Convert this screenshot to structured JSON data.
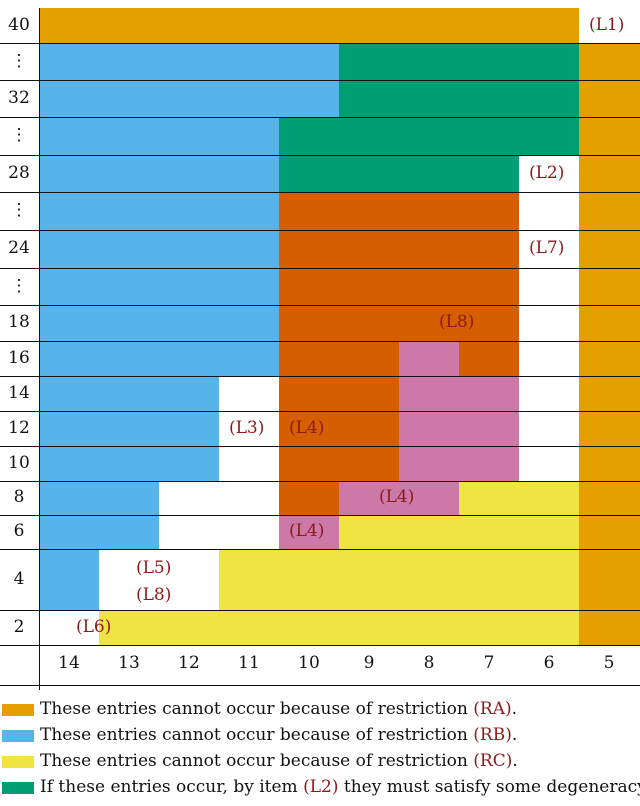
{
  "colors": {
    "RA": "#e69f00",
    "RB": "#56b4e9",
    "RC": "#f0e442",
    "GREEN": "#009e73",
    "VERM": "#d55e00",
    "PINK": "#cc79a7",
    "ref": "#8b1a1a"
  },
  "y_labels": [
    "40",
    "⋮",
    "32",
    "⋮",
    "28",
    "⋮",
    "24",
    "⋮",
    "18",
    "16",
    "14",
    "12",
    "10",
    "8",
    "6",
    "4",
    "2"
  ],
  "x_labels": [
    "14",
    "13",
    "12",
    "11",
    "10",
    "9",
    "8",
    "7",
    "6",
    "5"
  ],
  "regions": [
    {
      "row": 0,
      "from": 0,
      "to": 9,
      "color": "RA"
    },
    {
      "row": 1,
      "from": 0,
      "to": 5,
      "color": "RB"
    },
    {
      "row": 1,
      "from": 5,
      "to": 9,
      "color": "GREEN"
    },
    {
      "row": 2,
      "from": 0,
      "to": 5,
      "color": "RB"
    },
    {
      "row": 2,
      "from": 5,
      "to": 9,
      "color": "GREEN"
    },
    {
      "row": 3,
      "from": 0,
      "to": 4,
      "color": "RB"
    },
    {
      "row": 3,
      "from": 4,
      "to": 9,
      "color": "GREEN"
    },
    {
      "row": 4,
      "from": 0,
      "to": 4,
      "color": "RB"
    },
    {
      "row": 4,
      "from": 4,
      "to": 8,
      "color": "GREEN"
    },
    {
      "row": 5,
      "from": 0,
      "to": 4,
      "color": "RB"
    },
    {
      "row": 5,
      "from": 4,
      "to": 8,
      "color": "VERM"
    },
    {
      "row": 6,
      "from": 0,
      "to": 4,
      "color": "RB"
    },
    {
      "row": 6,
      "from": 4,
      "to": 8,
      "color": "VERM"
    },
    {
      "row": 7,
      "from": 0,
      "to": 4,
      "color": "RB"
    },
    {
      "row": 7,
      "from": 4,
      "to": 8,
      "color": "VERM"
    },
    {
      "row": 8,
      "from": 0,
      "to": 4,
      "color": "RB"
    },
    {
      "row": 8,
      "from": 4,
      "to": 8,
      "color": "VERM"
    },
    {
      "row": 9,
      "from": 0,
      "to": 4,
      "color": "RB"
    },
    {
      "row": 9,
      "from": 4,
      "to": 6,
      "color": "VERM"
    },
    {
      "row": 9,
      "from": 6,
      "to": 7,
      "color": "PINK"
    },
    {
      "row": 9,
      "from": 7,
      "to": 8,
      "color": "VERM"
    },
    {
      "row": 10,
      "from": 0,
      "to": 3,
      "color": "RB"
    },
    {
      "row": 10,
      "from": 4,
      "to": 6,
      "color": "VERM"
    },
    {
      "row": 10,
      "from": 6,
      "to": 8,
      "color": "PINK"
    },
    {
      "row": 11,
      "from": 0,
      "to": 3,
      "color": "RB"
    },
    {
      "row": 11,
      "from": 4,
      "to": 6,
      "color": "VERM"
    },
    {
      "row": 11,
      "from": 6,
      "to": 8,
      "color": "PINK"
    },
    {
      "row": 12,
      "from": 0,
      "to": 3,
      "color": "RB"
    },
    {
      "row": 12,
      "from": 4,
      "to": 6,
      "color": "VERM"
    },
    {
      "row": 12,
      "from": 6,
      "to": 8,
      "color": "PINK"
    },
    {
      "row": 13,
      "from": 0,
      "to": 2,
      "color": "RB"
    },
    {
      "row": 13,
      "from": 4,
      "to": 5,
      "color": "VERM"
    },
    {
      "row": 13,
      "from": 5,
      "to": 7,
      "color": "PINK"
    },
    {
      "row": 13,
      "from": 7,
      "to": 9,
      "color": "RC"
    },
    {
      "row": 14,
      "from": 0,
      "to": 2,
      "color": "RB"
    },
    {
      "row": 14,
      "from": 4,
      "to": 5,
      "color": "PINK"
    },
    {
      "row": 14,
      "from": 5,
      "to": 9,
      "color": "RC"
    },
    {
      "row": 15,
      "from": 0,
      "to": 1,
      "color": "RB"
    },
    {
      "row": 15,
      "from": 3,
      "to": 9,
      "color": "RC"
    },
    {
      "row": 16,
      "from": 1,
      "to": 9,
      "color": "RC"
    },
    {
      "row": 1,
      "from": 9,
      "to": 10,
      "color": "RA"
    },
    {
      "row": 2,
      "from": 9,
      "to": 10,
      "color": "RA"
    },
    {
      "row": 3,
      "from": 9,
      "to": 10,
      "color": "RA"
    },
    {
      "row": 4,
      "from": 9,
      "to": 10,
      "color": "RA"
    },
    {
      "row": 5,
      "from": 9,
      "to": 10,
      "color": "RA"
    },
    {
      "row": 6,
      "from": 9,
      "to": 10,
      "color": "RA"
    },
    {
      "row": 7,
      "from": 9,
      "to": 10,
      "color": "RA"
    },
    {
      "row": 8,
      "from": 9,
      "to": 10,
      "color": "RA"
    },
    {
      "row": 9,
      "from": 9,
      "to": 10,
      "color": "RA"
    },
    {
      "row": 10,
      "from": 9,
      "to": 10,
      "color": "RA"
    },
    {
      "row": 11,
      "from": 9,
      "to": 10,
      "color": "RA"
    },
    {
      "row": 12,
      "from": 9,
      "to": 10,
      "color": "RA"
    },
    {
      "row": 13,
      "from": 9,
      "to": 10,
      "color": "RA"
    },
    {
      "row": 14,
      "from": 9,
      "to": 10,
      "color": "RA"
    },
    {
      "row": 15,
      "from": 9,
      "to": 10,
      "color": "RA"
    },
    {
      "row": 16,
      "from": 9,
      "to": 10,
      "color": "RA"
    }
  ],
  "annotations": [
    {
      "text": "(L1)",
      "row": 0,
      "col": 9
    },
    {
      "text": "(L2)",
      "row": 4,
      "col": 8
    },
    {
      "text": "(L7)",
      "row": 6,
      "col": 8
    },
    {
      "text": "(L8)",
      "row": 8,
      "col": 6.5
    },
    {
      "text": "(L3)",
      "row": 11,
      "col": 3
    },
    {
      "text": "(L4)",
      "row": 11,
      "col": 4
    },
    {
      "text": "(L4)",
      "row": 13,
      "col": 5.5
    },
    {
      "text": "(L4)",
      "row": 14,
      "col": 4
    },
    {
      "text": "(L5)",
      "row": 15,
      "col": 1.45,
      "sub": "top"
    },
    {
      "text": "(L8)",
      "row": 15,
      "col": 1.45,
      "sub": "bottom"
    },
    {
      "text": "(L6)",
      "row": 16,
      "col": 0.45
    }
  ],
  "legend": [
    {
      "color": "RA",
      "text": "These entries cannot occur because of restriction ",
      "ref": "(RA)",
      "tail": "."
    },
    {
      "color": "RB",
      "text": "These entries cannot occur because of restriction ",
      "ref": "(RB)",
      "tail": "."
    },
    {
      "color": "RC",
      "text": "These entries cannot occur because of restriction ",
      "ref": "(RC)",
      "tail": "."
    },
    {
      "color": "GREEN",
      "text": "If these entries occur, by item ",
      "ref": "(L2)",
      "tail": " they must satisfy some degeneracy conditions."
    }
  ]
}
